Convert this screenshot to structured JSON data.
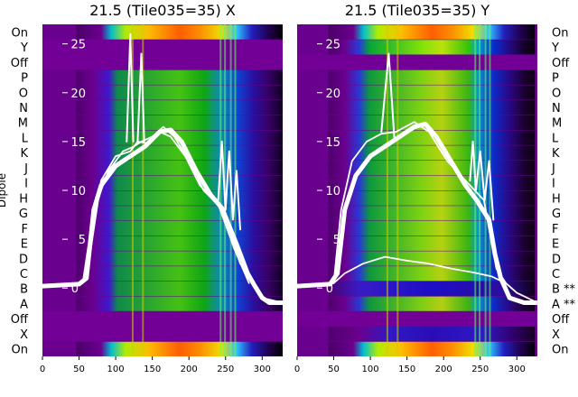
{
  "chart_data": [
    {
      "type": "heatmap",
      "title": "21.5 (Tile035=35) X",
      "polarization": "X",
      "ylabel": "Dipole",
      "xlim": [
        0,
        328
      ],
      "x_ticks": [
        0,
        50,
        100,
        150,
        200,
        250,
        300
      ],
      "overlay_ylim": [
        -7,
        27
      ],
      "overlay_ticks": [
        0,
        5,
        10,
        15,
        20,
        25
      ],
      "grid": false,
      "legend": "none",
      "row_labels_left": [
        "On",
        "Y",
        "Off",
        "P",
        "O",
        "N",
        "M",
        "L",
        "K",
        "J",
        "I",
        "H",
        "G",
        "F",
        "E",
        "D",
        "C",
        "B",
        "A",
        "Off",
        "X",
        "On"
      ],
      "rows": [
        {
          "label": "On",
          "type": "on",
          "level": 0.95
        },
        {
          "label": "Y",
          "type": "purple"
        },
        {
          "label": "Off",
          "type": "purple"
        },
        {
          "label": "P",
          "type": "on",
          "level": 0.55
        },
        {
          "label": "O",
          "type": "on",
          "level": 0.56
        },
        {
          "label": "N",
          "type": "on",
          "level": 0.57
        },
        {
          "label": "M",
          "type": "on",
          "level": 0.55
        },
        {
          "label": "L",
          "type": "on",
          "level": 0.58
        },
        {
          "label": "K",
          "type": "on",
          "level": 0.56
        },
        {
          "label": "J",
          "type": "on",
          "level": 0.57
        },
        {
          "label": "I",
          "type": "on",
          "level": 0.55
        },
        {
          "label": "H",
          "type": "on",
          "level": 0.54
        },
        {
          "label": "G",
          "type": "on",
          "level": 0.56
        },
        {
          "label": "F",
          "type": "on",
          "level": 0.55
        },
        {
          "label": "E",
          "type": "on",
          "level": 0.53
        },
        {
          "label": "D",
          "type": "on",
          "level": 0.55
        },
        {
          "label": "C",
          "type": "on",
          "level": 0.54
        },
        {
          "label": "B",
          "type": "on",
          "level": 0.5
        },
        {
          "label": "A",
          "type": "on",
          "level": 0.52
        },
        {
          "label": "Off",
          "type": "purple"
        },
        {
          "label": "X",
          "type": "purple"
        },
        {
          "label": "On",
          "type": "on",
          "level": 0.95
        }
      ],
      "overlay_lines": [
        {
          "style": "thick",
          "points": [
            [
              0,
              0.2
            ],
            [
              50,
              0.4
            ],
            [
              60,
              1
            ],
            [
              70,
              8
            ],
            [
              80,
              10.5
            ],
            [
              100,
              12.5
            ],
            [
              120,
              13.5
            ],
            [
              140,
              14.5
            ],
            [
              160,
              16
            ],
            [
              175,
              16.2
            ],
            [
              190,
              15
            ],
            [
              210,
              12
            ],
            [
              230,
              9.5
            ],
            [
              245,
              8.2
            ],
            [
              265,
              4.5
            ],
            [
              280,
              1.5
            ],
            [
              290,
              0.2
            ],
            [
              300,
              -1
            ],
            [
              310,
              -1.5
            ],
            [
              328,
              -1.5
            ]
          ]
        },
        {
          "style": "thin",
          "points": [
            [
              0,
              0.2
            ],
            [
              55,
              0.5
            ],
            [
              70,
              8
            ],
            [
              90,
              12
            ],
            [
              110,
              14
            ],
            [
              125,
              14.5
            ],
            [
              135,
              15
            ],
            [
              150,
              15.5
            ],
            [
              165,
              16.5
            ],
            [
              180,
              15.5
            ],
            [
              200,
              13
            ],
            [
              220,
              10
            ],
            [
              240,
              8.5
            ],
            [
              255,
              6
            ],
            [
              270,
              2.5
            ],
            [
              285,
              1
            ],
            [
              300,
              -1
            ],
            [
              328,
              -1.5
            ]
          ]
        },
        {
          "style": "thin",
          "points": [
            [
              60,
              1
            ],
            [
              80,
              11
            ],
            [
              100,
              13.5
            ],
            [
              120,
              14
            ],
            [
              130,
              15
            ],
            [
              145,
              14.8
            ],
            [
              160,
              16
            ],
            [
              175,
              15.5
            ],
            [
              195,
              13.5
            ],
            [
              215,
              10.5
            ],
            [
              240,
              8.6
            ],
            [
              262,
              4
            ],
            [
              282,
              0.5
            ]
          ]
        },
        {
          "style": "spike",
          "points": [
            [
              115,
              15
            ],
            [
              120,
              26
            ],
            [
              124,
              15
            ]
          ]
        },
        {
          "style": "spike",
          "points": [
            [
              130,
              15
            ],
            [
              135,
              24
            ],
            [
              139,
              15
            ]
          ]
        },
        {
          "style": "spike",
          "points": [
            [
              240,
              9
            ],
            [
              245,
              15
            ],
            [
              250,
              8
            ],
            [
              255,
              14
            ],
            [
              260,
              7
            ],
            [
              265,
              12
            ],
            [
              270,
              6
            ]
          ]
        }
      ]
    },
    {
      "type": "heatmap",
      "title": "21.5 (Tile035=35) Y",
      "polarization": "Y",
      "xlim": [
        0,
        328
      ],
      "x_ticks": [
        0,
        50,
        100,
        150,
        200,
        250,
        300
      ],
      "overlay_ylim": [
        -7,
        27
      ],
      "overlay_ticks": [
        0,
        5,
        10,
        15,
        20,
        25
      ],
      "grid": false,
      "legend": "none",
      "row_labels_right": [
        "On",
        "Y",
        "Off",
        "P",
        "O",
        "N",
        "M",
        "L",
        "K",
        "J",
        "I",
        "H",
        "G",
        "F",
        "E",
        "D",
        "C",
        "B **",
        "A **",
        "Off",
        "X",
        "On"
      ],
      "rows": [
        {
          "label": "On",
          "type": "on",
          "level": 0.97
        },
        {
          "label": "Y",
          "type": "on",
          "level": 0.8
        },
        {
          "label": "Off",
          "type": "purple"
        },
        {
          "label": "P",
          "type": "on",
          "level": 0.57
        },
        {
          "label": "O",
          "type": "on",
          "level": 0.58
        },
        {
          "label": "N",
          "type": "on",
          "level": 0.6
        },
        {
          "label": "M",
          "type": "on",
          "level": 0.58
        },
        {
          "label": "L",
          "type": "on",
          "level": 0.6
        },
        {
          "label": "K",
          "type": "on",
          "level": 0.59
        },
        {
          "label": "J",
          "type": "on",
          "level": 0.6
        },
        {
          "label": "I",
          "type": "on",
          "level": 0.58
        },
        {
          "label": "H",
          "type": "on",
          "level": 0.57
        },
        {
          "label": "G",
          "type": "on",
          "level": 0.59
        },
        {
          "label": "F",
          "type": "on",
          "level": 0.58
        },
        {
          "label": "E",
          "type": "on",
          "level": 0.56
        },
        {
          "label": "D",
          "type": "on",
          "level": 0.58
        },
        {
          "label": "C",
          "type": "on",
          "level": 0.57
        },
        {
          "label": "B **",
          "type": "blue"
        },
        {
          "label": "A **",
          "type": "on",
          "level": 0.55
        },
        {
          "label": "Off",
          "type": "purple"
        },
        {
          "label": "X",
          "type": "on",
          "level": 0.3
        },
        {
          "label": "On",
          "type": "on",
          "level": 0.97
        }
      ],
      "overlay_lines": [
        {
          "style": "thick",
          "points": [
            [
              0,
              0.2
            ],
            [
              45,
              0.4
            ],
            [
              55,
              1.5
            ],
            [
              65,
              8
            ],
            [
              80,
              11.5
            ],
            [
              100,
              13.5
            ],
            [
              120,
              14.5
            ],
            [
              140,
              15.5
            ],
            [
              160,
              16.5
            ],
            [
              175,
              16.8
            ],
            [
              190,
              15.5
            ],
            [
              210,
              13
            ],
            [
              230,
              10.5
            ],
            [
              245,
              9
            ],
            [
              262,
              7
            ],
            [
              270,
              3.5
            ],
            [
              278,
              1
            ],
            [
              290,
              -1
            ],
            [
              310,
              -1.5
            ],
            [
              328,
              -1.5
            ]
          ]
        },
        {
          "style": "thin",
          "points": [
            [
              50,
              0.5
            ],
            [
              60,
              8
            ],
            [
              75,
              13
            ],
            [
              95,
              15
            ],
            [
              115,
              15.8
            ],
            [
              135,
              16
            ],
            [
              160,
              17
            ],
            [
              180,
              16
            ],
            [
              205,
              13
            ],
            [
              230,
              11
            ],
            [
              255,
              9
            ],
            [
              272,
              2
            ],
            [
              285,
              0.5
            ]
          ]
        },
        {
          "style": "thin",
          "points": [
            [
              0,
              0.3
            ],
            [
              50,
              0.5
            ],
            [
              65,
              1.5
            ],
            [
              90,
              2.5
            ],
            [
              120,
              3.2
            ],
            [
              150,
              2.8
            ],
            [
              180,
              2.5
            ],
            [
              210,
              2
            ],
            [
              240,
              1.6
            ],
            [
              265,
              1.2
            ],
            [
              285,
              0.5
            ],
            [
              300,
              -0.5
            ],
            [
              328,
              -1.5
            ]
          ]
        },
        {
          "style": "spike",
          "points": [
            [
              115,
              16
            ],
            [
              125,
              24
            ],
            [
              133,
              15
            ]
          ]
        },
        {
          "style": "spike",
          "points": [
            [
              236,
              11
            ],
            [
              240,
              15
            ],
            [
              244,
              10
            ],
            [
              250,
              14
            ],
            [
              256,
              9
            ],
            [
              262,
              13
            ],
            [
              268,
              7
            ]
          ]
        }
      ]
    }
  ]
}
